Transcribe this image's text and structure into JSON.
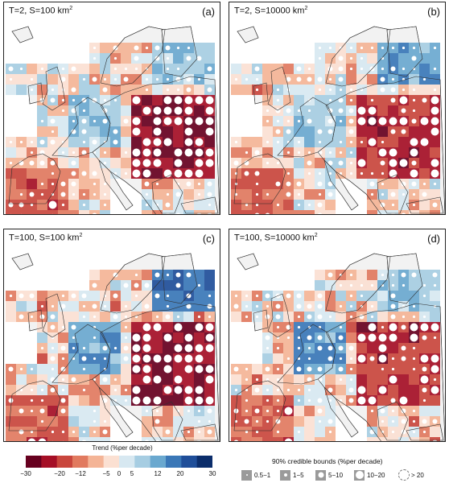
{
  "panels": [
    {
      "id": "a",
      "title": "T=2, S=100 km",
      "sup": "2",
      "letter": "(a)",
      "variant": 0
    },
    {
      "id": "b",
      "title": "T=2, S=10000 km",
      "sup": "2",
      "letter": "(b)",
      "variant": 1
    },
    {
      "id": "c",
      "title": "T=100, S=100 km",
      "sup": "2",
      "letter": "(c)",
      "variant": 2
    },
    {
      "id": "d",
      "title": "T=100, S=10000 km",
      "sup": "2",
      "letter": "(d)",
      "variant": 3
    }
  ],
  "colorbar": {
    "title": "Trend (%per decade)",
    "ticks": [
      "−30",
      "−20",
      "−12",
      "−5",
      "0",
      "5",
      "12",
      "20",
      "30"
    ],
    "colors": [
      "#67001f",
      "#a50f26",
      "#c9463d",
      "#e17a5f",
      "#f4b496",
      "#fbe0d2",
      "#d7e8f1",
      "#a6cde2",
      "#6aa8cf",
      "#3a77b7",
      "#1f4e99",
      "#0b2d6b"
    ]
  },
  "credible_bounds_legend": {
    "title": "90% credible bounds (%per decade)",
    "items": [
      "0.5−1",
      "1−5",
      "5−10",
      "10−20",
      "> 20"
    ]
  },
  "colors": {
    "land_background": "#ffffff",
    "border": "#222222",
    "sea": "#ffffff"
  }
}
